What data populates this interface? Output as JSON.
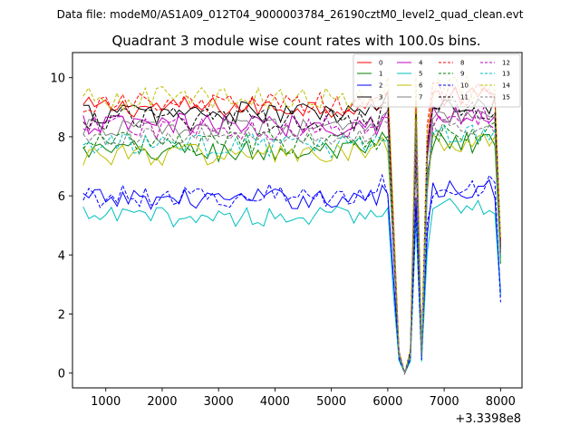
{
  "header": {
    "data_file": "Data file: modeM0/AS1A09_012T04_9000003784_26190cztM0_level2_quad_clean.evt"
  },
  "chart_data": {
    "type": "line",
    "title": "Quadrant 3 module wise count rates with 100.0s bins.",
    "xlabel": "",
    "ylabel": "",
    "x_offset_label": "+3.3398e8",
    "xlim": [
      410,
      8380
    ],
    "ylim": [
      -0.5,
      10.85
    ],
    "xticks": [
      1000,
      2000,
      3000,
      4000,
      5000,
      6000,
      7000,
      8000
    ],
    "xtick_labels": [
      "1000",
      "2000",
      "3000",
      "4000",
      "5000",
      "6000",
      "7000",
      "8000"
    ],
    "yticks": [
      0,
      2,
      4,
      6,
      8,
      10
    ],
    "ytick_labels": [
      "0",
      "2",
      "4",
      "6",
      "8",
      "10"
    ],
    "legend_position": "top-right",
    "x": {
      "start": 600,
      "step": 100,
      "end": 8000
    },
    "dip_profile": {
      "6100": 0.55,
      "6200": 0.08,
      "6300": 0.0,
      "6400": 0.08,
      "6500": 1.0,
      "6600": 0.08,
      "6700": 0.85
    },
    "series": [
      {
        "name": "0",
        "color": "#ff0000",
        "dash": "solid",
        "level": 9.0,
        "amp": 0.35,
        "final": 4.4
      },
      {
        "name": "1",
        "color": "#008000",
        "dash": "solid",
        "level": 7.5,
        "amp": 0.4,
        "final": 3.7
      },
      {
        "name": "2",
        "color": "#0000ff",
        "dash": "solid",
        "level": 5.9,
        "amp": 0.35,
        "final": 2.7
      },
      {
        "name": "3",
        "color": "#000000",
        "dash": "solid",
        "level": 8.8,
        "amp": 0.4,
        "final": 4.2
      },
      {
        "name": "4",
        "color": "#bf00bf",
        "dash": "solid",
        "level": 8.4,
        "amp": 0.4,
        "final": 4.0
      },
      {
        "name": "5",
        "color": "#00bfbf",
        "dash": "solid",
        "level": 5.3,
        "amp": 0.35,
        "final": 2.6
      },
      {
        "name": "6",
        "color": "#bfbf00",
        "dash": "solid",
        "level": 7.4,
        "amp": 0.4,
        "final": 3.8
      },
      {
        "name": "7",
        "color": "#808080",
        "dash": "solid",
        "level": 8.3,
        "amp": 0.3,
        "final": 4.1
      },
      {
        "name": "8",
        "color": "#ff0000",
        "dash": "dashed",
        "level": 9.1,
        "amp": 0.4,
        "final": 4.5
      },
      {
        "name": "9",
        "color": "#008000",
        "dash": "dashed",
        "level": 7.8,
        "amp": 0.4,
        "final": 3.9
      },
      {
        "name": "10",
        "color": "#0000ff",
        "dash": "dashed",
        "level": 6.0,
        "amp": 0.4,
        "final": 2.4
      },
      {
        "name": "11",
        "color": "#000000",
        "dash": "dashed",
        "level": 8.6,
        "amp": 0.4,
        "final": 4.3
      },
      {
        "name": "12",
        "color": "#bf00bf",
        "dash": "dashed",
        "level": 8.3,
        "amp": 0.4,
        "final": 4.1
      },
      {
        "name": "13",
        "color": "#00bfbf",
        "dash": "dashed",
        "level": 7.7,
        "amp": 0.4,
        "final": 3.8
      },
      {
        "name": "14",
        "color": "#bfbf00",
        "dash": "dashed",
        "level": 9.3,
        "amp": 0.4,
        "final": 4.6
      },
      {
        "name": "15",
        "color": "#808080",
        "dash": "dashed",
        "level": 8.0,
        "amp": 0.3,
        "final": 4.0
      }
    ]
  }
}
